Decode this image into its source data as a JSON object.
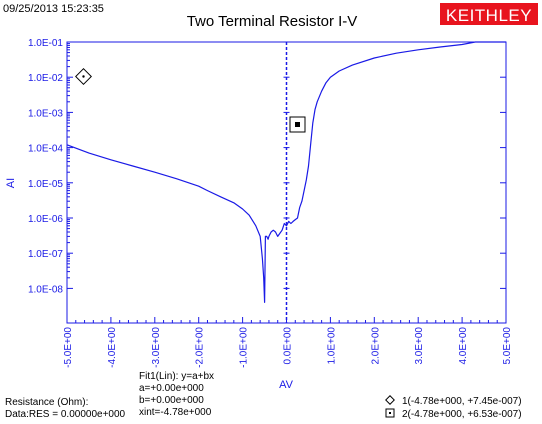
{
  "timestamp": "09/25/2013 15:23:35",
  "brand": {
    "label": "KEITHLEY",
    "color": "#e8141e"
  },
  "colors": {
    "axis": "#1a1ae6",
    "series": "#1a1ae6"
  },
  "chart_data": {
    "type": "line",
    "title": "Two Terminal Resistor I-V",
    "xlabel": "AV",
    "ylabel": "AI",
    "xscale": "linear",
    "yscale": "log",
    "xlim": [
      -5.0,
      5.0
    ],
    "ylim": [
      1e-09,
      0.1
    ],
    "grid": false,
    "x_ticks": [
      -5,
      -4,
      -3,
      -2,
      -1,
      0,
      1,
      2,
      3,
      4,
      5
    ],
    "x_tick_labels": [
      "-5.0E+00",
      "-4.0E+00",
      "-3.0E+00",
      "-2.0E+00",
      "-1.0E+00",
      "0.0E+00",
      "1.0E+00",
      "2.0E+00",
      "3.0E+00",
      "4.0E+00",
      "5.0E+00"
    ],
    "y_ticks": [
      1e-08,
      1e-07,
      1e-06,
      1e-05,
      0.0001,
      0.001,
      0.01,
      0.1
    ],
    "y_tick_labels": [
      "1.0E-08",
      "1.0E-07",
      "1.0E-06",
      "1.0E-05",
      "1.0E-04",
      "1.0E-03",
      "1.0E-02",
      "1.0E-01"
    ],
    "series": [
      {
        "x": [
          -5.0,
          -4.5,
          -4.0,
          -3.5,
          -3.0,
          -2.5,
          -2.0,
          -1.8,
          -1.5,
          -1.2,
          -1.0,
          -0.85,
          -0.7,
          -0.6,
          -0.55,
          -0.52,
          -0.5,
          -0.48,
          -0.45,
          -0.42,
          -0.4,
          -0.35,
          -0.3,
          -0.25,
          -0.2,
          -0.1,
          -0.05,
          0.0,
          0.05,
          0.1,
          0.15,
          0.2,
          0.25,
          0.3,
          0.35,
          0.4,
          0.45,
          0.5,
          0.55,
          0.6,
          0.65,
          0.7,
          0.8,
          0.9,
          1.0,
          1.2,
          1.5,
          2.0,
          2.5,
          3.0,
          3.5,
          4.0,
          4.3,
          4.6,
          5.0
        ],
        "y": [
          0.00012,
          7e-05,
          4.5e-05,
          3e-05,
          2e-05,
          1.3e-05,
          8e-06,
          6e-06,
          4e-06,
          2.7e-06,
          1.8e-06,
          1.2e-06,
          6e-07,
          3e-07,
          7e-08,
          2e-08,
          4e-09,
          3e-07,
          3e-07,
          2.5e-07,
          3e-07,
          4e-07,
          4.5e-07,
          4e-07,
          3e-07,
          4.5e-07,
          7e-07,
          6e-07,
          8e-07,
          7e-07,
          8e-07,
          9e-07,
          1e-06,
          2e-06,
          3e-06,
          6e-06,
          1.2e-05,
          3e-05,
          0.00012,
          0.0005,
          0.0012,
          0.002,
          0.004,
          0.007,
          0.01,
          0.015,
          0.022,
          0.035,
          0.048,
          0.06,
          0.072,
          0.085,
          0.1,
          0.1,
          0.1
        ]
      }
    ],
    "fit": {
      "heading": "Fit1(Lin):  y=a+bx",
      "a": "a=+0.00e+000",
      "b": "b=+0.00e+000",
      "xint": "xint=-4.78e+000"
    },
    "markers": [
      {
        "id": "1",
        "shape": "diamond",
        "text": "1(-4.78e+000, +7.45e-007)"
      },
      {
        "id": "2",
        "shape": "square",
        "text": "2(-4.78e+000, +6.53e-007)"
      }
    ],
    "results": {
      "resistance_label": "Resistance (Ohm):",
      "data_res": "Data:RES = 0.00000e+000"
    }
  }
}
